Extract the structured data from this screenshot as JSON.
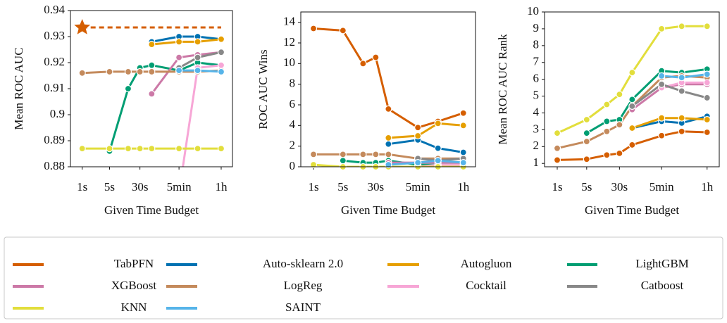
{
  "chart_data": [
    {
      "type": "line",
      "ylabel": "Mean ROC AUC",
      "xlabel": "Given Time Budget",
      "xscale": "log",
      "x": [
        1,
        5,
        15,
        30,
        60,
        300,
        900,
        3600
      ],
      "xlim": [
        0.5,
        7000
      ],
      "xticks": [
        {
          "value": 1,
          "label": "1s"
        },
        {
          "value": 5,
          "label": "5s"
        },
        {
          "value": 30,
          "label": "30s"
        },
        {
          "value": 300,
          "label": "5min"
        },
        {
          "value": 3600,
          "label": "1h"
        }
      ],
      "ylim": [
        0.88,
        0.94
      ],
      "yticks": [
        0.88,
        0.89,
        0.9,
        0.91,
        0.92,
        0.93,
        0.94
      ],
      "series": [
        {
          "name": "TabPFN",
          "color": "#d55e00",
          "linestyle": "dashed",
          "marker": "star",
          "values": [
            0.9335,
            0.9335,
            0.9335,
            0.9335,
            0.9335,
            0.9335,
            0.9335,
            0.9335
          ]
        },
        {
          "name": "Auto-sklearn 2.0",
          "color": "#0072b2",
          "values": [
            null,
            null,
            null,
            null,
            0.928,
            0.93,
            0.93,
            0.929
          ]
        },
        {
          "name": "Autogluon",
          "color": "#e69f00",
          "values": [
            null,
            null,
            null,
            null,
            0.927,
            0.928,
            0.928,
            0.929
          ]
        },
        {
          "name": "LightGBM",
          "color": "#009e73",
          "values": [
            null,
            0.886,
            0.91,
            0.918,
            0.919,
            0.917,
            0.92,
            0.919
          ]
        },
        {
          "name": "XGBoost",
          "color": "#cc79a7",
          "values": [
            null,
            null,
            null,
            null,
            0.908,
            0.922,
            0.923,
            0.924
          ]
        },
        {
          "name": "LogReg",
          "color": "#c48a5c",
          "values": [
            0.916,
            0.9165,
            0.9165,
            0.9165,
            0.9165,
            0.9165,
            0.9165,
            0.917
          ]
        },
        {
          "name": "Cocktail",
          "color": "#f7a6d6",
          "values": [
            null,
            null,
            null,
            null,
            null,
            0.87,
            0.918,
            0.919
          ]
        },
        {
          "name": "Catboost",
          "color": "#888888",
          "values": [
            null,
            null,
            null,
            null,
            null,
            0.918,
            0.922,
            0.924
          ]
        },
        {
          "name": "KNN",
          "color": "#e2de3c",
          "values": [
            0.887,
            0.887,
            0.887,
            0.887,
            0.887,
            0.887,
            0.887,
            0.887
          ]
        },
        {
          "name": "SAINT",
          "color": "#56b4e9",
          "values": [
            null,
            null,
            null,
            null,
            null,
            0.917,
            0.917,
            0.9165
          ]
        }
      ]
    },
    {
      "type": "line",
      "ylabel": "ROC AUC Wins",
      "xlabel": "Given Time Budget",
      "xscale": "log",
      "x": [
        1,
        5,
        15,
        30,
        60,
        300,
        900,
        3600
      ],
      "xlim": [
        0.5,
        7000
      ],
      "xticks": [
        {
          "value": 1,
          "label": "1s"
        },
        {
          "value": 5,
          "label": "5s"
        },
        {
          "value": 30,
          "label": "30s"
        },
        {
          "value": 300,
          "label": "5min"
        },
        {
          "value": 3600,
          "label": "1h"
        }
      ],
      "ylim": [
        0,
        15
      ],
      "yticks": [
        0,
        2,
        4,
        6,
        8,
        10,
        12,
        14
      ],
      "series": [
        {
          "name": "TabPFN",
          "color": "#d55e00",
          "values": [
            13.4,
            13.2,
            10,
            10.6,
            5.6,
            3.8,
            4.4,
            5.2
          ]
        },
        {
          "name": "Auto-sklearn 2.0",
          "color": "#0072b2",
          "values": [
            null,
            null,
            null,
            null,
            2.2,
            2.6,
            1.8,
            1.4
          ]
        },
        {
          "name": "Autogluon",
          "color": "#e69f00",
          "values": [
            null,
            null,
            null,
            null,
            2.8,
            3.0,
            4.2,
            4.0
          ]
        },
        {
          "name": "LightGBM",
          "color": "#009e73",
          "values": [
            null,
            0.6,
            0.4,
            0.4,
            0.6,
            0.2,
            0.2,
            0.2
          ]
        },
        {
          "name": "XGBoost",
          "color": "#cc79a7",
          "values": [
            null,
            null,
            null,
            null,
            0.4,
            0.4,
            0.4,
            0.4
          ]
        },
        {
          "name": "LogReg",
          "color": "#c48a5c",
          "values": [
            1.2,
            1.2,
            1.2,
            1.2,
            1.2,
            0.8,
            0.8,
            0.8
          ]
        },
        {
          "name": "Cocktail",
          "color": "#f7a6d6",
          "values": [
            null,
            null,
            null,
            null,
            null,
            0,
            0.2,
            0.2
          ]
        },
        {
          "name": "Catboost",
          "color": "#888888",
          "values": [
            null,
            null,
            null,
            null,
            null,
            0.8,
            0.6,
            0.8
          ]
        },
        {
          "name": "KNN",
          "color": "#e2de3c",
          "values": [
            0.2,
            0,
            0,
            0,
            0,
            0,
            0,
            0
          ]
        },
        {
          "name": "SAINT",
          "color": "#56b4e9",
          "values": [
            null,
            null,
            null,
            null,
            0.2,
            0.4,
            0.6,
            0.4
          ]
        }
      ]
    },
    {
      "type": "line",
      "ylabel": "Mean ROC AUC Rank",
      "xlabel": "Given Time Budget",
      "xscale": "log",
      "x": [
        1,
        5,
        15,
        30,
        60,
        300,
        900,
        3600
      ],
      "xlim": [
        0.5,
        7000
      ],
      "xticks": [
        {
          "value": 1,
          "label": "1s"
        },
        {
          "value": 5,
          "label": "5s"
        },
        {
          "value": 30,
          "label": "30s"
        },
        {
          "value": 300,
          "label": "5min"
        },
        {
          "value": 3600,
          "label": "1h"
        }
      ],
      "ylim": [
        0.8,
        10
      ],
      "yticks": [
        1,
        2,
        3,
        4,
        5,
        6,
        7,
        8,
        9,
        10
      ],
      "series": [
        {
          "name": "TabPFN",
          "color": "#d55e00",
          "values": [
            1.2,
            1.25,
            1.5,
            1.6,
            2.1,
            2.65,
            2.9,
            2.85
          ]
        },
        {
          "name": "Auto-sklearn 2.0",
          "color": "#0072b2",
          "values": [
            null,
            null,
            null,
            null,
            3.1,
            3.5,
            3.4,
            3.8
          ]
        },
        {
          "name": "Autogluon",
          "color": "#e69f00",
          "values": [
            null,
            null,
            null,
            null,
            3.1,
            3.7,
            3.7,
            3.6
          ]
        },
        {
          "name": "LightGBM",
          "color": "#009e73",
          "values": [
            null,
            2.8,
            3.5,
            3.6,
            4.8,
            6.5,
            6.4,
            6.6
          ]
        },
        {
          "name": "XGBoost",
          "color": "#cc79a7",
          "values": [
            null,
            null,
            null,
            null,
            4.2,
            5.5,
            5.7,
            5.7
          ]
        },
        {
          "name": "LogReg",
          "color": "#c48a5c",
          "values": [
            1.9,
            2.3,
            2.9,
            3.3,
            4.4,
            6.1,
            6.2,
            6.1
          ]
        },
        {
          "name": "Cocktail",
          "color": "#f7a6d6",
          "values": [
            null,
            null,
            null,
            null,
            null,
            5.5,
            5.8,
            5.8
          ]
        },
        {
          "name": "Catboost",
          "color": "#888888",
          "values": [
            null,
            null,
            null,
            null,
            4.4,
            5.7,
            5.3,
            4.9
          ]
        },
        {
          "name": "KNN",
          "color": "#e2de3c",
          "values": [
            2.8,
            3.6,
            4.5,
            5.1,
            6.4,
            9.0,
            9.15,
            9.15
          ]
        },
        {
          "name": "SAINT",
          "color": "#56b4e9",
          "values": [
            null,
            null,
            null,
            null,
            null,
            6.2,
            6.1,
            6.3
          ]
        }
      ]
    }
  ]
}
